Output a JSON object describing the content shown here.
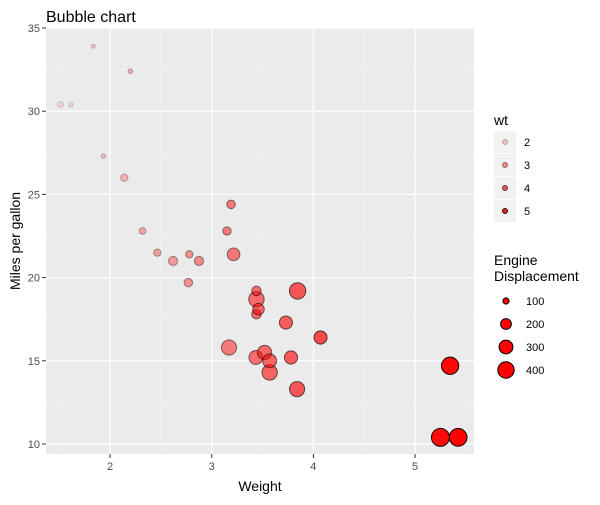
{
  "chart_data": {
    "type": "scatter",
    "title": "Bubble chart",
    "xlabel": "Weight",
    "ylabel": "Miles per gallon",
    "xlim": [
      1.37,
      5.58
    ],
    "ylim": [
      9.4,
      35.0
    ],
    "x_ticks": [
      2,
      3,
      4,
      5
    ],
    "y_ticks": [
      10,
      15,
      20,
      25,
      30,
      35
    ],
    "grid": true,
    "fill_color": "#ff0000",
    "stroke_color": "#000000",
    "panel_background": "#ebebeb",
    "legend_placement": "right",
    "legend_color": {
      "title": "wt",
      "breaks": [
        2,
        3,
        4,
        5
      ]
    },
    "legend_size": {
      "title": "Engine Displacement",
      "breaks": [
        100,
        200,
        300,
        400
      ]
    },
    "points": [
      {
        "wt": 1.513,
        "mpg": 30.4,
        "disp": 95.1
      },
      {
        "wt": 1.615,
        "mpg": 30.4,
        "disp": 75.7
      },
      {
        "wt": 1.835,
        "mpg": 33.9,
        "disp": 71.1
      },
      {
        "wt": 1.935,
        "mpg": 27.3,
        "disp": 79.0
      },
      {
        "wt": 2.14,
        "mpg": 26.0,
        "disp": 120.3
      },
      {
        "wt": 2.2,
        "mpg": 32.4,
        "disp": 78.7
      },
      {
        "wt": 2.32,
        "mpg": 22.8,
        "disp": 108.0
      },
      {
        "wt": 2.465,
        "mpg": 21.5,
        "disp": 120.1
      },
      {
        "wt": 2.62,
        "mpg": 21.0,
        "disp": 160.0
      },
      {
        "wt": 2.77,
        "mpg": 19.7,
        "disp": 145.0
      },
      {
        "wt": 2.78,
        "mpg": 21.4,
        "disp": 121.0
      },
      {
        "wt": 2.875,
        "mpg": 21.0,
        "disp": 160.0
      },
      {
        "wt": 3.15,
        "mpg": 22.8,
        "disp": 140.8
      },
      {
        "wt": 3.17,
        "mpg": 15.8,
        "disp": 351.0
      },
      {
        "wt": 3.19,
        "mpg": 24.4,
        "disp": 146.7
      },
      {
        "wt": 3.215,
        "mpg": 21.4,
        "disp": 258.0
      },
      {
        "wt": 3.435,
        "mpg": 15.2,
        "disp": 304.0
      },
      {
        "wt": 3.44,
        "mpg": 18.7,
        "disp": 360.0
      },
      {
        "wt": 3.44,
        "mpg": 19.2,
        "disp": 167.6
      },
      {
        "wt": 3.44,
        "mpg": 17.8,
        "disp": 167.6
      },
      {
        "wt": 3.46,
        "mpg": 18.1,
        "disp": 225.0
      },
      {
        "wt": 3.52,
        "mpg": 15.5,
        "disp": 318.0
      },
      {
        "wt": 3.57,
        "mpg": 14.3,
        "disp": 360.0
      },
      {
        "wt": 3.57,
        "mpg": 15.0,
        "disp": 301.0
      },
      {
        "wt": 3.73,
        "mpg": 17.3,
        "disp": 275.8
      },
      {
        "wt": 3.78,
        "mpg": 15.2,
        "disp": 275.8
      },
      {
        "wt": 3.84,
        "mpg": 13.3,
        "disp": 350.0
      },
      {
        "wt": 3.845,
        "mpg": 19.2,
        "disp": 400.0
      },
      {
        "wt": 4.07,
        "mpg": 16.4,
        "disp": 275.8
      },
      {
        "wt": 5.25,
        "mpg": 10.4,
        "disp": 472.0
      },
      {
        "wt": 5.345,
        "mpg": 14.7,
        "disp": 440.0
      },
      {
        "wt": 5.424,
        "mpg": 10.4,
        "disp": 460.0
      }
    ]
  }
}
